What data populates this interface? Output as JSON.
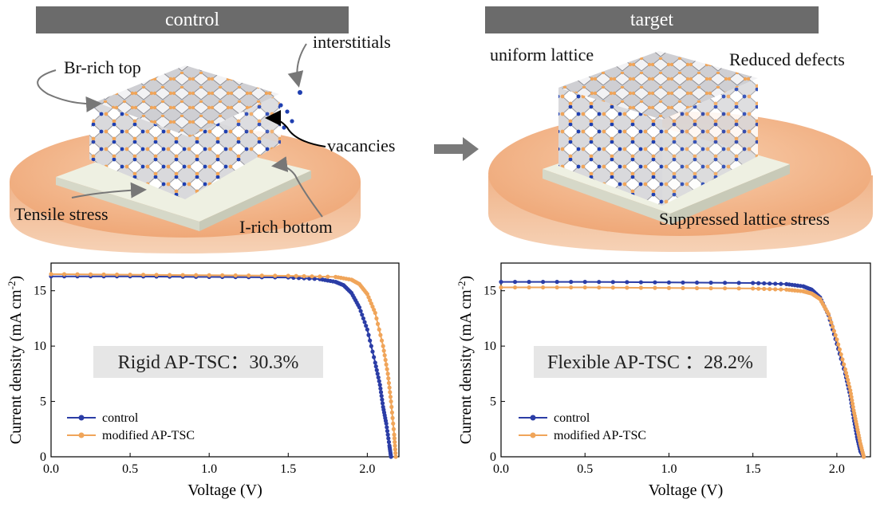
{
  "banners": {
    "left": "control",
    "right": "target"
  },
  "labels": {
    "br_rich_top": "Br-rich top",
    "interstitials": "interstitials",
    "vacancies": "vacancies",
    "tensile_stress": "Tensile stress",
    "i_rich_bottom": "I-rich bottom",
    "uniform_lattice": "uniform lattice",
    "reduced_defects": "Reduced defects",
    "suppressed_stress": "Suppressed lattice stress"
  },
  "colors": {
    "control": "#2b3da6",
    "modified": "#f0a55a",
    "banner": "#6b6b6b",
    "disc": "#f4bf97",
    "annotation_box": "#e6e6e6"
  },
  "chart_data": [
    {
      "type": "line",
      "annotation": "Rigid AP-TSC：30.3%",
      "xlabel": "Voltage (V)",
      "ylabel": "Current density (mA cm",
      "ylabel_sup": "-2",
      "ylabel_end": ")",
      "xlim": [
        0,
        2.2
      ],
      "ylim": [
        0,
        17.5
      ],
      "xticks": [
        0,
        0.5,
        1.0,
        1.5,
        2.0
      ],
      "xtick_labels": [
        "0.0",
        "0.5",
        "1.0",
        "1.5",
        "2.0"
      ],
      "yticks": [
        0,
        5,
        10,
        15
      ],
      "ytick_labels": [
        "0",
        "5",
        "10",
        "15"
      ],
      "legend_position": "bottom-left",
      "series": [
        {
          "name": "control",
          "x": [
            0,
            0.5,
            1.0,
            1.5,
            1.7,
            1.8,
            1.85,
            1.9,
            1.95,
            2.0,
            2.05,
            2.08,
            2.1,
            2.12,
            2.14,
            2.15
          ],
          "y": [
            16.3,
            16.3,
            16.25,
            16.2,
            16.05,
            15.8,
            15.5,
            14.8,
            13.5,
            11.5,
            8.5,
            6.5,
            4.5,
            3.0,
            1.0,
            0
          ]
        },
        {
          "name": "modified AP-TSC",
          "x": [
            0,
            0.5,
            1.0,
            1.5,
            1.8,
            1.9,
            1.95,
            2.0,
            2.05,
            2.1,
            2.13,
            2.15,
            2.17,
            2.18
          ],
          "y": [
            16.5,
            16.45,
            16.4,
            16.35,
            16.25,
            16.0,
            15.6,
            14.7,
            13.0,
            10.0,
            7.5,
            5.0,
            2.0,
            0
          ]
        }
      ]
    },
    {
      "type": "line",
      "annotation": "Flexible AP-TSC ：28.2%",
      "xlabel": "Voltage (V)",
      "ylabel": "Current density (mA cm",
      "ylabel_sup": "-2",
      "ylabel_end": ")",
      "xlim": [
        0,
        2.2
      ],
      "ylim": [
        0,
        17.5
      ],
      "xticks": [
        0,
        0.5,
        1.0,
        1.5,
        2.0
      ],
      "xtick_labels": [
        "0.0",
        "0.5",
        "1.0",
        "1.5",
        "2.0"
      ],
      "yticks": [
        0,
        5,
        10,
        15
      ],
      "ytick_labels": [
        "0",
        "5",
        "10",
        "15"
      ],
      "legend_position": "bottom-left",
      "series": [
        {
          "name": "control",
          "x": [
            0,
            0.5,
            1.0,
            1.5,
            1.7,
            1.8,
            1.85,
            1.9,
            1.95,
            2.0,
            2.05,
            2.08,
            2.1,
            2.12,
            2.14,
            2.16
          ],
          "y": [
            15.8,
            15.8,
            15.75,
            15.7,
            15.6,
            15.4,
            15.1,
            14.4,
            12.8,
            10.2,
            7.5,
            5.5,
            3.5,
            1.8,
            0.5,
            0
          ]
        },
        {
          "name": "modified AP-TSC",
          "x": [
            0,
            0.5,
            1.0,
            1.5,
            1.7,
            1.8,
            1.85,
            1.9,
            1.95,
            2.0,
            2.05,
            2.08,
            2.1,
            2.12,
            2.14,
            2.16
          ],
          "y": [
            15.3,
            15.3,
            15.25,
            15.2,
            15.1,
            14.95,
            14.75,
            14.25,
            12.9,
            10.6,
            7.9,
            6.0,
            4.2,
            2.7,
            1.2,
            0
          ]
        }
      ]
    }
  ]
}
